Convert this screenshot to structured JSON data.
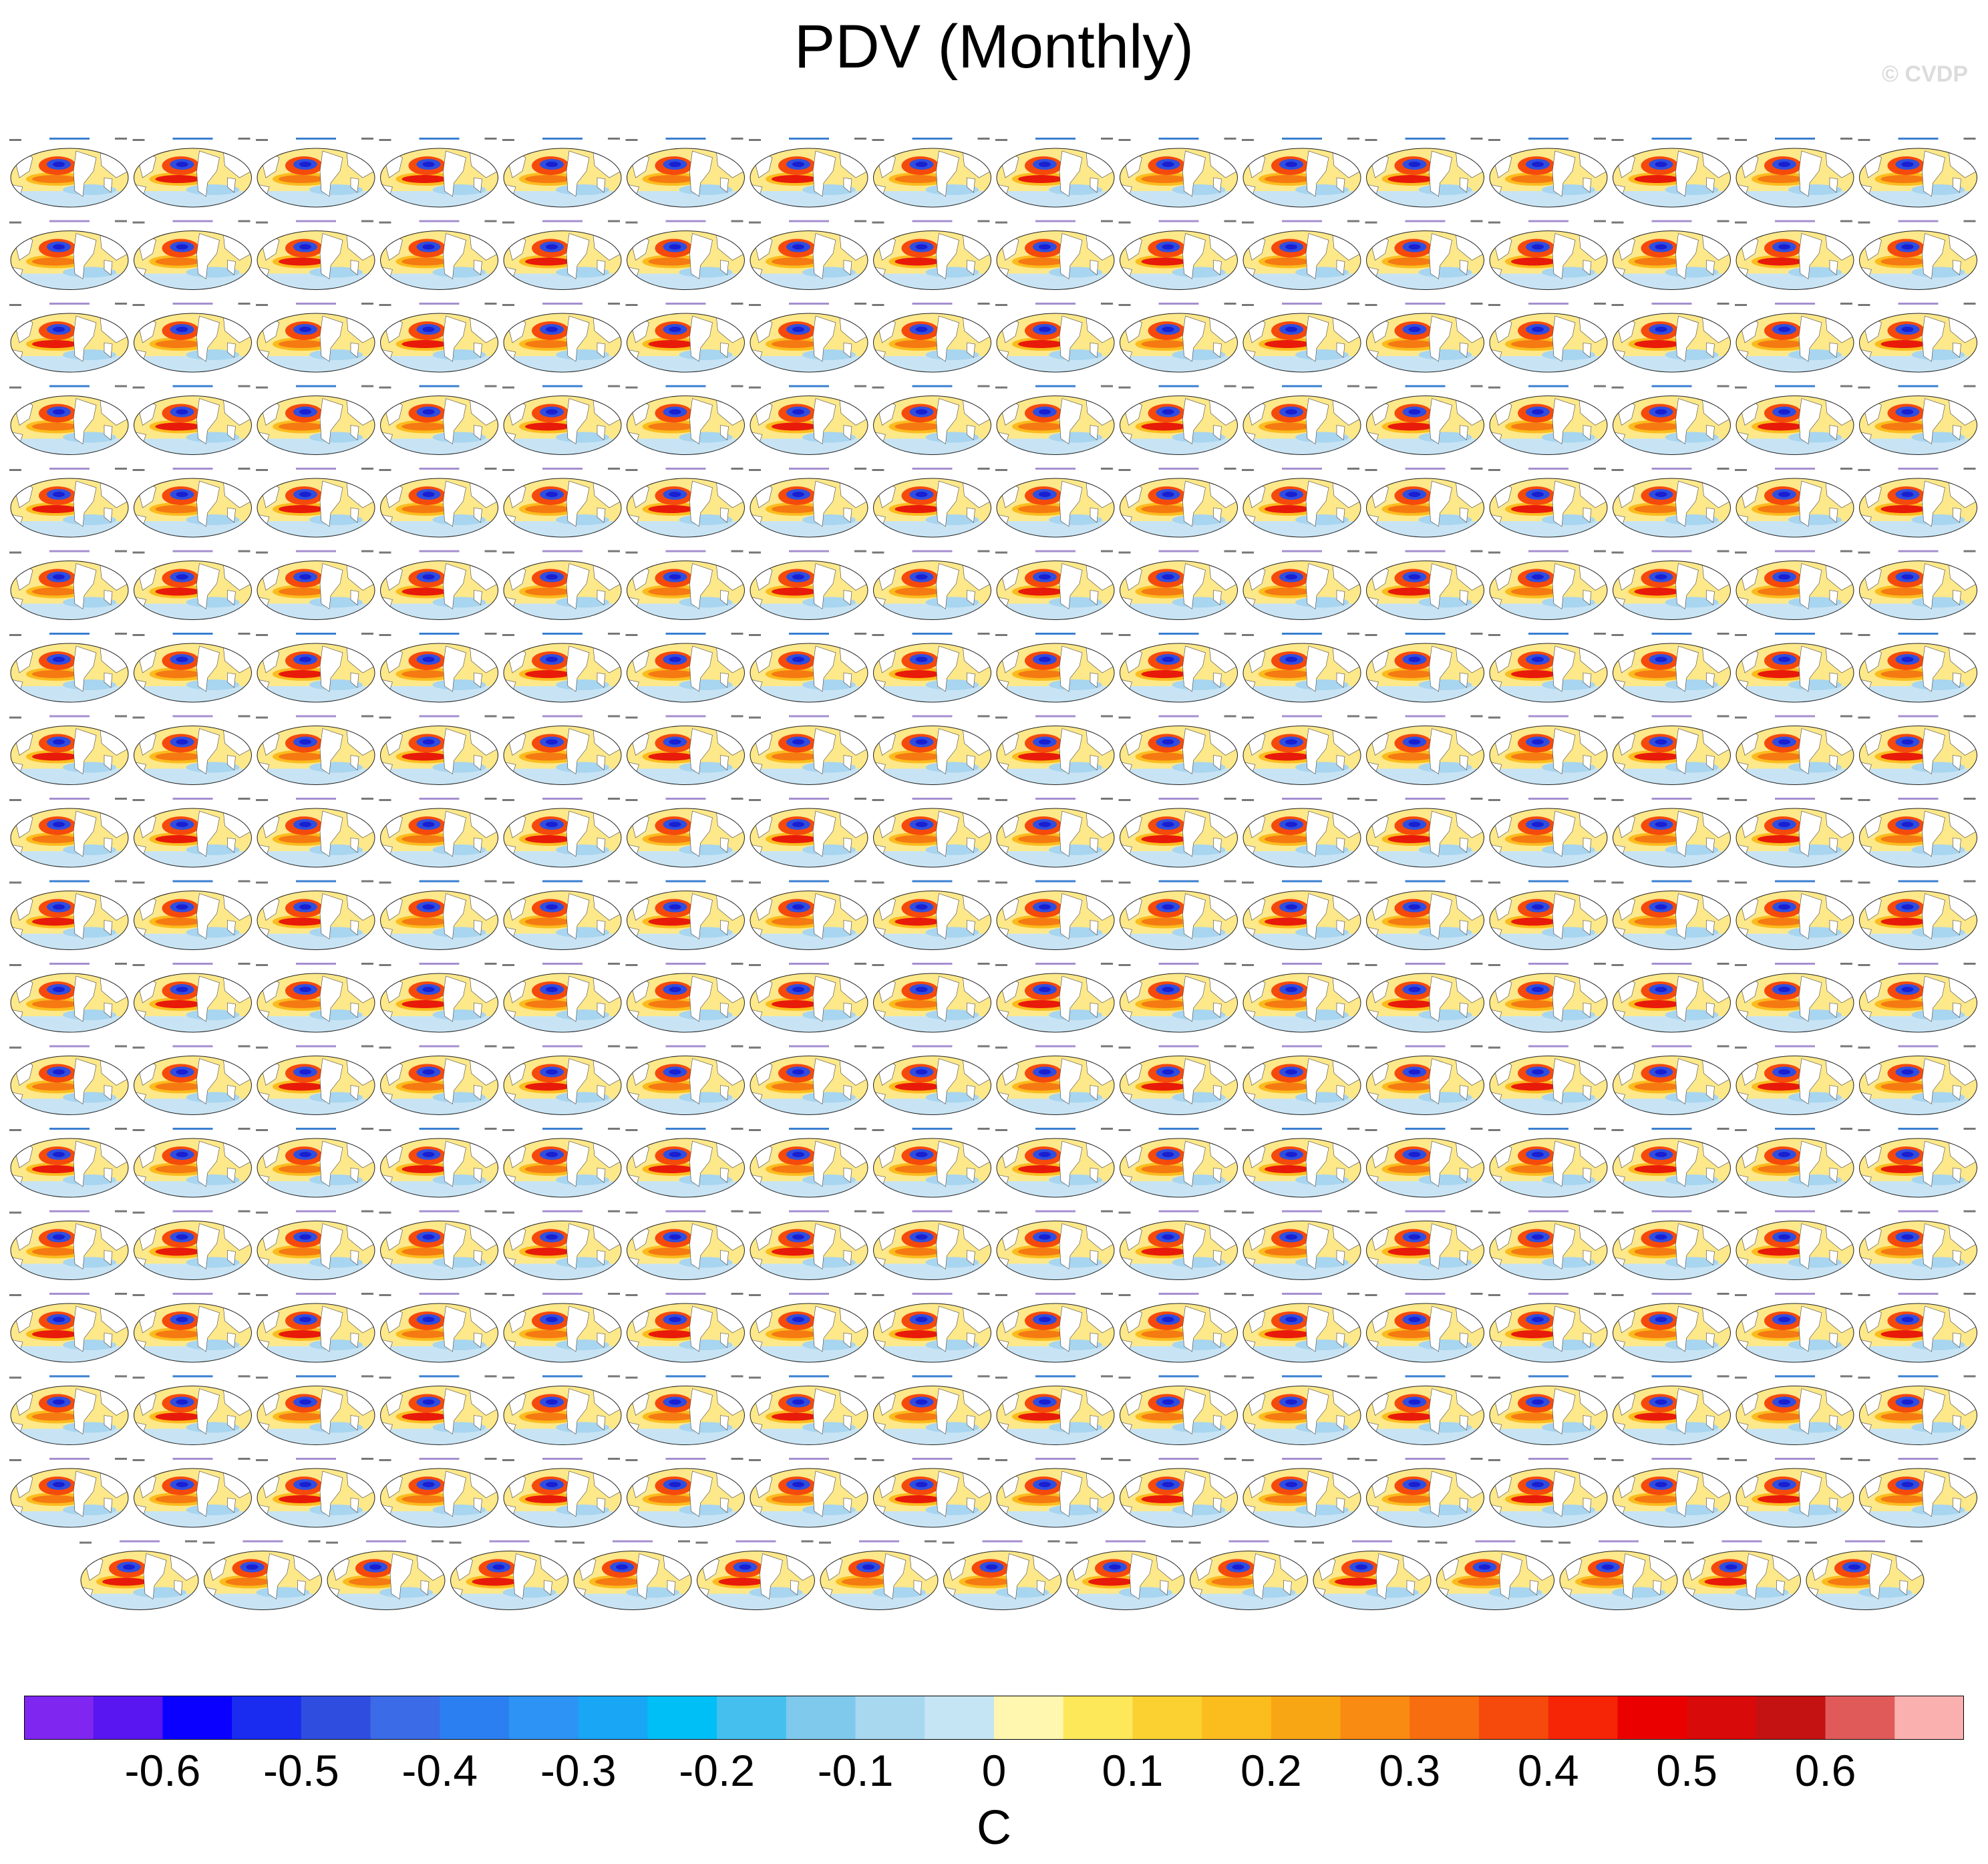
{
  "title": "PDV (Monthly)",
  "watermark": "© CVDP",
  "colorbar": {
    "units": "C",
    "tick_labels": [
      "-0.6",
      "-0.5",
      "-0.4",
      "-0.3",
      "-0.2",
      "-0.1",
      "0",
      "0.1",
      "0.2",
      "0.3",
      "0.4",
      "0.5",
      "0.6"
    ],
    "colors": [
      "#7f26f0",
      "#5a16f0",
      "#0a00ff",
      "#1a2cf0",
      "#2f4ee0",
      "#3b6be6",
      "#2c7ff0",
      "#2d93f5",
      "#18a6f5",
      "#00bff7",
      "#45c0ee",
      "#7fc9ec",
      "#a8d8f0",
      "#c5e5f5",
      "#fff7b0",
      "#fde85a",
      "#fbd132",
      "#fbbc1e",
      "#f9a615",
      "#f98a12",
      "#f76d10",
      "#f54a0c",
      "#f52506",
      "#eb0000",
      "#d80a0a",
      "#c41212",
      "#e05a5a",
      "#fbb0b0"
    ]
  },
  "chart_data": {
    "type": "heatmap",
    "title": "PDV (Monthly)",
    "description_values": "Grid of small global SST regression maps (one per dataset/ensemble member)",
    "rows": 18,
    "columns": 16,
    "last_row_columns": 15,
    "range": [
      -0.7,
      0.7
    ],
    "units": "C",
    "first_panel_titles": [
      "ERSST v5",
      "HadISST"
    ]
  }
}
